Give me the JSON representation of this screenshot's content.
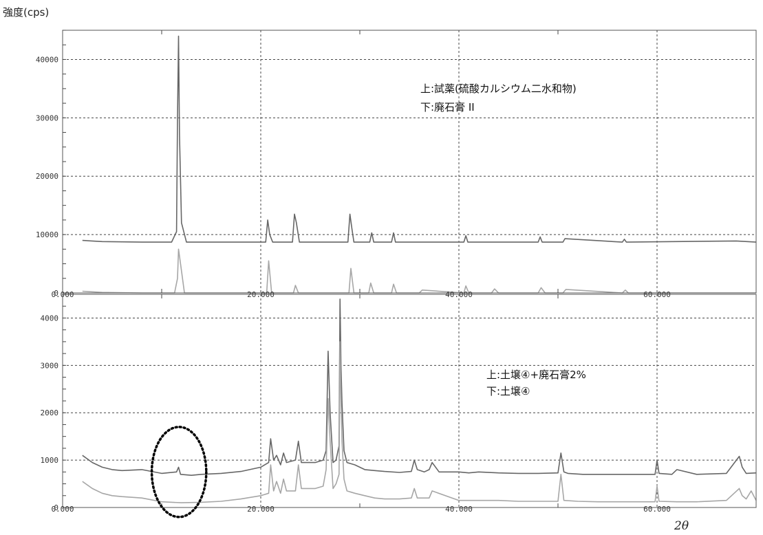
{
  "figure": {
    "y_axis_title": "強度(cps)",
    "x_axis_title": "2θ"
  },
  "chart_data": [
    {
      "type": "line",
      "xlabel": "",
      "ylabel": "強度(cps)",
      "xlim": [
        0,
        70
      ],
      "ylim": [
        0,
        45000
      ],
      "grid": true,
      "x_ticks": [
        {
          "value": 0,
          "label": "0.000"
        },
        {
          "value": 20,
          "label": "20.000"
        },
        {
          "value": 40,
          "label": "40.000"
        },
        {
          "value": 60,
          "label": "60.000"
        }
      ],
      "y_ticks": [
        {
          "value": 0,
          "label": "0"
        },
        {
          "value": 10000,
          "label": "10000"
        },
        {
          "value": 20000,
          "label": "20000"
        },
        {
          "value": 30000,
          "label": "30000"
        },
        {
          "value": 40000,
          "label": "40000"
        }
      ],
      "annotations": [
        "上:試薬(硫酸カルシウム二水和物)",
        "下:廃石膏 II"
      ],
      "series": [
        {
          "color": "#666666",
          "x": [
            2,
            4,
            8,
            11.0,
            11.5,
            11.6,
            11.7,
            11.8,
            12.0,
            12.5,
            15,
            20.5,
            20.7,
            20.9,
            21.2,
            23.2,
            23.4,
            23.6,
            23.9,
            28.8,
            29.0,
            29.2,
            29.4,
            31.0,
            31.2,
            31.4,
            33.2,
            33.4,
            33.6,
            40.5,
            40.7,
            40.9,
            48.0,
            48.2,
            48.4,
            50.5,
            50.7,
            56.5,
            56.7,
            56.9,
            68,
            70
          ],
          "y": [
            9000,
            8800,
            8700,
            8700,
            10500,
            30000,
            44000,
            27000,
            12000,
            8700,
            8700,
            8700,
            12500,
            10000,
            8700,
            8700,
            13500,
            12000,
            8700,
            8700,
            13500,
            11000,
            8700,
            8700,
            10300,
            8700,
            8700,
            10300,
            8700,
            8700,
            9800,
            8700,
            8700,
            9600,
            8700,
            8700,
            9300,
            8700,
            9200,
            8700,
            8900,
            8700
          ]
        },
        {
          "color": "#a6a6a6",
          "x": [
            2,
            4,
            8,
            11.3,
            11.6,
            11.7,
            11.9,
            12.3,
            15,
            20.6,
            20.8,
            21.1,
            23.3,
            23.5,
            23.8,
            28.9,
            29.1,
            29.4,
            30.9,
            31.1,
            31.4,
            33.2,
            33.4,
            33.7,
            36,
            36.3,
            40.5,
            40.7,
            41,
            43.3,
            43.6,
            44,
            48,
            48.3,
            48.7,
            50.5,
            50.8,
            56.5,
            56.8,
            57.1,
            60,
            70
          ],
          "y": [
            300,
            100,
            0,
            0,
            2500,
            7500,
            5000,
            0,
            0,
            0,
            5500,
            0,
            0,
            1300,
            0,
            0,
            4200,
            0,
            0,
            1700,
            0,
            0,
            1500,
            0,
            0,
            500,
            0,
            1200,
            0,
            0,
            700,
            0,
            0,
            900,
            0,
            0,
            600,
            0,
            500,
            0,
            0,
            0
          ]
        }
      ]
    },
    {
      "type": "line",
      "xlabel": "2θ",
      "ylabel": "",
      "xlim": [
        0,
        70
      ],
      "ylim": [
        0,
        4500
      ],
      "grid": true,
      "x_ticks": [
        {
          "value": 0,
          "label": "0.000"
        },
        {
          "value": 20,
          "label": "20.000"
        },
        {
          "value": 40,
          "label": "40.000"
        },
        {
          "value": 60,
          "label": "60.000"
        }
      ],
      "y_ticks": [
        {
          "value": 0,
          "label": "0"
        },
        {
          "value": 1000,
          "label": "1000"
        },
        {
          "value": 2000,
          "label": "2000"
        },
        {
          "value": 3000,
          "label": "3000"
        },
        {
          "value": 4000,
          "label": "4000"
        }
      ],
      "annotations": [
        "上:土壌④+廃石膏2%",
        "下:土壌④"
      ],
      "highlight": {
        "x": [
          9,
          14.5
        ],
        "y": [
          -200,
          1700
        ],
        "style": "dotted-ellipse"
      },
      "series": [
        {
          "color": "#666666",
          "x": [
            2,
            3,
            4,
            5,
            6,
            8,
            10,
            11.5,
            11.7,
            11.9,
            13,
            14,
            16,
            18,
            20,
            20.8,
            21.0,
            21.3,
            21.6,
            22.0,
            22.3,
            22.6,
            23.5,
            23.8,
            24.1,
            25.5,
            26.3,
            26.6,
            26.8,
            27.0,
            27.3,
            27.6,
            27.9,
            28.0,
            28.1,
            28.2,
            28.4,
            28.7,
            29.5,
            30.5,
            31.5,
            32.5,
            34,
            35.2,
            35.5,
            35.8,
            36.5,
            37,
            37.3,
            38,
            40,
            41,
            42,
            44,
            46,
            48,
            50,
            50.3,
            50.6,
            51,
            52.5,
            54,
            56,
            58,
            59.8,
            60,
            60.2,
            61.5,
            62,
            64,
            67,
            68.3,
            68.6,
            69,
            70
          ],
          "y": [
            1100,
            950,
            850,
            800,
            780,
            800,
            720,
            750,
            850,
            700,
            680,
            700,
            720,
            760,
            850,
            950,
            1450,
            1000,
            1100,
            900,
            1150,
            950,
            1000,
            1400,
            950,
            950,
            1000,
            1200,
            3300,
            2000,
            950,
            1000,
            1300,
            4400,
            3000,
            2200,
            1200,
            950,
            900,
            800,
            780,
            760,
            740,
            760,
            1000,
            800,
            750,
            800,
            950,
            750,
            750,
            730,
            750,
            730,
            720,
            720,
            730,
            1150,
            750,
            720,
            700,
            700,
            700,
            700,
            700,
            1000,
            720,
            700,
            800,
            700,
            720,
            1080,
            850,
            720,
            730
          ]
        },
        {
          "color": "#a6a6a6",
          "x": [
            2,
            3,
            4,
            5,
            6,
            8,
            10,
            12,
            14,
            16,
            18,
            20,
            20.8,
            21.0,
            21.3,
            21.6,
            22.0,
            22.3,
            22.6,
            23.5,
            23.8,
            24.1,
            25.5,
            26.3,
            26.6,
            26.8,
            27.0,
            27.3,
            27.6,
            27.9,
            28.0,
            28.1,
            28.2,
            28.4,
            28.7,
            29.5,
            30.5,
            31.5,
            32.5,
            34,
            35.2,
            35.5,
            35.8,
            37,
            37.3,
            40,
            42,
            44,
            46,
            48,
            50,
            50.3,
            50.6,
            52,
            54,
            56,
            58,
            59.8,
            60,
            60.2,
            62,
            64,
            67,
            68.3,
            68.6,
            69,
            69.5,
            70
          ],
          "y": [
            550,
            400,
            300,
            250,
            230,
            200,
            120,
            100,
            110,
            130,
            180,
            250,
            300,
            900,
            350,
            550,
            300,
            600,
            350,
            350,
            900,
            400,
            400,
            450,
            800,
            2300,
            1400,
            400,
            500,
            700,
            3500,
            2300,
            1400,
            600,
            350,
            300,
            250,
            200,
            180,
            180,
            200,
            400,
            200,
            200,
            350,
            150,
            150,
            150,
            130,
            130,
            130,
            700,
            150,
            130,
            120,
            120,
            120,
            120,
            450,
            130,
            120,
            120,
            150,
            400,
            250,
            180,
            350,
            150
          ]
        }
      ]
    }
  ]
}
